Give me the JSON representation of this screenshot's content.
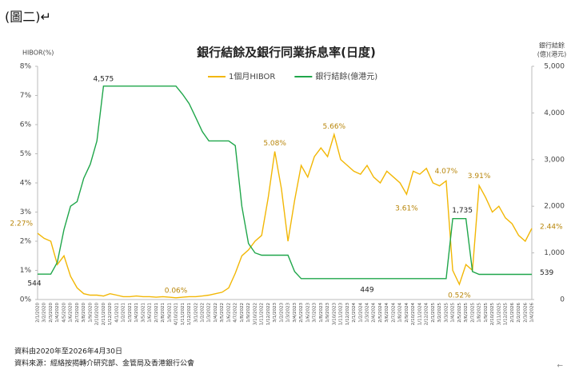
{
  "header": "(圖二)↵",
  "chart_data": {
    "type": "line",
    "title": "銀行結餘及銀行同業拆息率(日度)",
    "y_label": "HIBOR(%)",
    "y2_label": [
      "銀行結餘",
      "(億)(港元)"
    ],
    "categories": [
      "2/1/2020",
      "3/2/2020",
      "2/3/2020",
      "1/4/2020",
      "4/5/2020",
      "1/6/2020",
      "2/7/2020",
      "3/8/2020",
      "1/9/2020",
      "2/10/2020",
      "2/11/2020",
      "1/12/2020",
      "4/1/2021",
      "1/2/2021",
      "1/3/2021",
      "1/4/2021",
      "3/5/2021",
      "1/6/2021",
      "2/7/2021",
      "2/8/2021",
      "1/9/2021",
      "4/10/2021",
      "1/11/2021",
      "1/12/2021",
      "3/1/2022",
      "1/2/2022",
      "1/3/2022",
      "1/4/2022",
      "3/5/2022",
      "1/6/2022",
      "4/7/2022",
      "1/8/2022",
      "1/9/2022",
      "3/10/2022",
      "1/11/2022",
      "1/12/2022",
      "3/1/2023",
      "1/2/2023",
      "1/3/2023",
      "3/4/2023",
      "2/5/2023",
      "1/6/2023",
      "3/7/2023",
      "1/8/2023",
      "1/9/2023",
      "3/10/2023",
      "1/11/2023",
      "1/12/2023",
      "2/1/2024",
      "1/2/2024",
      "1/3/2024",
      "2/4/2024",
      "2/5/2024",
      "3/6/2024",
      "2/7/2024",
      "1/8/2024",
      "2/9/2024",
      "2/10/2024",
      "1/11/2024",
      "2/12/2024",
      "2/1/2025",
      "3/2/2025",
      "3/3/2025",
      "1/4/2025",
      "2/5/2025",
      "3/6/2025",
      "2/7/2025",
      "1/8/2025",
      "1/9/2025",
      "2/10/2025",
      "3/11/2025",
      "1/12/2025",
      "2/1/2026",
      "2/2/2026",
      "2/3/2026",
      "1/4/2026"
    ],
    "series": [
      {
        "name": "1個月HIBOR",
        "color": "#f2b705",
        "values": [
          2.27,
          2.1,
          2.0,
          1.2,
          1.5,
          0.8,
          0.4,
          0.2,
          0.15,
          0.15,
          0.12,
          0.2,
          0.15,
          0.1,
          0.1,
          0.12,
          0.1,
          0.1,
          0.08,
          0.1,
          0.08,
          0.06,
          0.08,
          0.1,
          0.1,
          0.12,
          0.15,
          0.2,
          0.25,
          0.4,
          0.9,
          1.5,
          1.7,
          2.0,
          2.2,
          3.5,
          5.08,
          3.8,
          2.0,
          3.4,
          4.6,
          4.2,
          4.9,
          5.2,
          4.9,
          5.66,
          4.8,
          4.6,
          4.4,
          4.3,
          4.6,
          4.2,
          4.0,
          4.4,
          4.2,
          4.0,
          3.61,
          4.4,
          4.3,
          4.5,
          4.0,
          3.9,
          4.07,
          1.0,
          0.52,
          1.2,
          1.0,
          3.91,
          3.5,
          3.0,
          3.2,
          2.8,
          2.6,
          2.2,
          2.0,
          2.44
        ],
        "value_labels": [
          "2.27%",
          null,
          null,
          null,
          null,
          null,
          null,
          null,
          null,
          null,
          null,
          null,
          null,
          null,
          null,
          null,
          null,
          null,
          null,
          null,
          null,
          "0.06%",
          null,
          null,
          null,
          null,
          null,
          null,
          null,
          null,
          null,
          null,
          null,
          null,
          null,
          null,
          "5.08%",
          null,
          null,
          null,
          null,
          null,
          null,
          null,
          null,
          "5.66%",
          null,
          null,
          null,
          null,
          null,
          null,
          null,
          null,
          null,
          null,
          "3.61%",
          null,
          null,
          null,
          null,
          null,
          "4.07%",
          null,
          "0.52%",
          null,
          null,
          "3.91%",
          null,
          null,
          null,
          null,
          null,
          null,
          null,
          "2.44%"
        ]
      },
      {
        "name": "銀行結餘(億港元)",
        "color": "#1fa64a",
        "axis": "y2",
        "values": [
          544,
          544,
          544,
          800,
          1500,
          2000,
          2100,
          2600,
          2900,
          3400,
          4575,
          4575,
          4575,
          4575,
          4575,
          4575,
          4575,
          4575,
          4575,
          4575,
          4575,
          4575,
          4400,
          4200,
          3900,
          3600,
          3400,
          3400,
          3400,
          3400,
          3300,
          2000,
          1200,
          1000,
          950,
          950,
          950,
          950,
          950,
          600,
          449,
          449,
          449,
          449,
          449,
          449,
          449,
          449,
          449,
          449,
          449,
          449,
          449,
          449,
          449,
          449,
          449,
          449,
          449,
          449,
          449,
          449,
          449,
          1735,
          1735,
          1735,
          600,
          539,
          539,
          539,
          539,
          539,
          539,
          539,
          539,
          539
        ],
        "value_labels": [
          "544",
          null,
          null,
          null,
          null,
          null,
          null,
          null,
          null,
          null,
          "4,575",
          null,
          null,
          null,
          null,
          null,
          null,
          null,
          null,
          null,
          null,
          null,
          null,
          null,
          null,
          null,
          null,
          null,
          null,
          null,
          null,
          null,
          null,
          null,
          null,
          null,
          null,
          null,
          null,
          null,
          null,
          null,
          null,
          null,
          null,
          null,
          null,
          null,
          null,
          null,
          "449",
          null,
          null,
          null,
          null,
          null,
          null,
          null,
          null,
          null,
          null,
          null,
          null,
          "1,735",
          null,
          null,
          null,
          null,
          null,
          null,
          null,
          null,
          null,
          null,
          null,
          "539"
        ]
      }
    ],
    "ylim": [
      0,
      8
    ],
    "yticks": [
      {
        "value": 0,
        "label": "0%"
      },
      {
        "value": 1,
        "label": "1%"
      },
      {
        "value": 2,
        "label": "2%"
      },
      {
        "value": 3,
        "label": "3%"
      },
      {
        "value": 4,
        "label": "4%"
      },
      {
        "value": 5,
        "label": "5%"
      },
      {
        "value": 6,
        "label": "6%"
      },
      {
        "value": 7,
        "label": "7%"
      },
      {
        "value": 8,
        "label": "8%"
      }
    ],
    "y2lim": [
      0,
      5000
    ],
    "y2ticks": [
      0,
      {
        "value": 1000,
        "label": "1,000"
      },
      {
        "value": 2000,
        "label": "2,000"
      },
      {
        "value": 3000,
        "label": "3,000"
      },
      {
        "value": 4000,
        "label": "4,000"
      },
      {
        "value": 5000,
        "label": "5,000"
      }
    ],
    "grid": false,
    "legend": "top",
    "notes": [
      "資料由2020年至2026年4月30日",
      "資料來源：經絡按揭轉介研究部、金管局及香港銀行公會"
    ]
  },
  "corner_mark": "←"
}
